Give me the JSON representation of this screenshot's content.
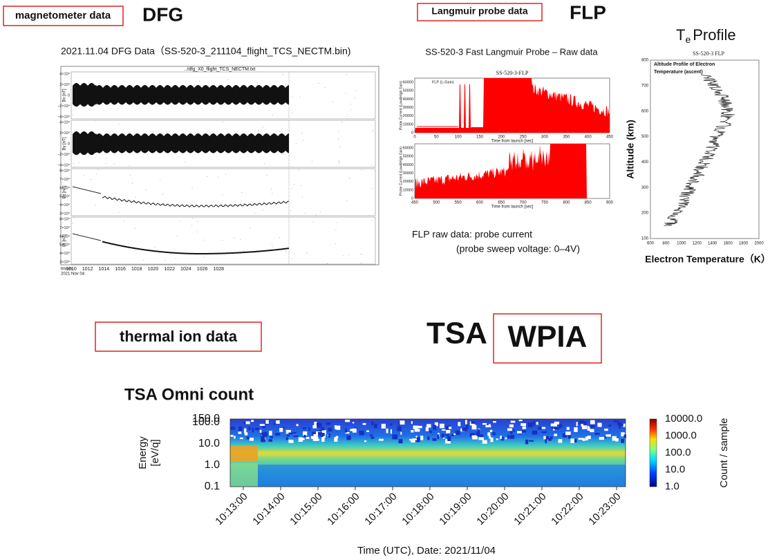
{
  "dfg": {
    "tag": "magnetometer data",
    "name": "DFG",
    "title": "2021.11.04 DFG Data（SS-520-3_211104_flight_TCS_NECTM.bin)",
    "file": "../dfg_X0_flight_TCS_NECTM.txt",
    "panels": [
      {
        "ylabel": "Bx [nT]",
        "yticks": [
          "4×10⁴",
          "2×10⁴",
          "0",
          "−2×10⁴",
          "−4×10⁴"
        ]
      },
      {
        "ylabel": "By [nT]",
        "yticks": [
          "4×10⁴",
          "2×10⁴",
          "0",
          "−2×10⁴",
          "−4×10⁴"
        ]
      },
      {
        "ylabel": "Bz [nT]",
        "yticks": [
          "8×10⁴",
          "7×10⁴",
          "6×10⁴",
          "5×10⁴",
          "4×10⁴",
          "3×10⁴"
        ]
      },
      {
        "ylabel": "Bt [nT]",
        "yticks": [
          "8×10⁴",
          "7×10⁴",
          "6×10⁴",
          "5×10⁴",
          "4×10⁴",
          "3×10⁴"
        ]
      }
    ],
    "xticks": [
      1010,
      1012,
      1014,
      1016,
      1018,
      1020,
      1022,
      1024,
      1026,
      1028
    ],
    "xunit": "hhmm",
    "date": "2021 Nov 04"
  },
  "flp": {
    "tag": "Langmuir probe data",
    "name": "FLP",
    "title": "SS-520-3 Fast Langmuir Probe – Raw data",
    "plot_title": "SS-520-3-FLP",
    "legend": "FLP (L-Gain)",
    "ylabel": "Probe Current (Low&High Gain)",
    "xlabel": "Time from launch [sec]",
    "yticks": [
      0,
      10000,
      20000,
      30000,
      40000,
      50000,
      60000
    ],
    "xticks_top": [
      0,
      50,
      100,
      150,
      200,
      250,
      300,
      350,
      400,
      450
    ],
    "xticks_bottom": [
      450,
      500,
      550,
      600,
      650,
      700,
      750,
      800,
      850,
      900
    ],
    "caption": [
      "FLP raw data: probe current",
      "(probe sweep voltage: 0–4V)"
    ]
  },
  "te": {
    "title": "T",
    "title_sub": "e",
    "title_rest": "Profile",
    "plot_title": "SS-520-3 FLP",
    "annotation": [
      "Altitude Profile of Electron",
      "Temperature (ascent)"
    ],
    "ylabel": "Altitude (km)",
    "xlabel": "Electron Temperature（K）",
    "yticks": [
      100,
      200,
      300,
      400,
      500,
      600,
      700,
      800
    ],
    "xticks": [
      600,
      800,
      1000,
      1200,
      1400,
      1600,
      1800,
      2000
    ]
  },
  "tsa": {
    "tag": "thermal ion data",
    "name": "TSA",
    "name2": "WPIA",
    "title": "TSA Omni count",
    "ylabel": [
      "Energy",
      "[eV/q]"
    ],
    "yticks": [
      {
        "value": 150,
        "label": "150.0"
      },
      {
        "value": 100,
        "label": "100.0"
      },
      {
        "value": 10,
        "label": "10.0"
      },
      {
        "value": 1,
        "label": "1.0"
      },
      {
        "value": 0.1,
        "label": "0.1"
      }
    ],
    "cticks": [
      {
        "value": 10000,
        "label": "10000.0"
      },
      {
        "value": 1000,
        "label": "1000.0"
      },
      {
        "value": 100,
        "label": "100.0"
      },
      {
        "value": 10,
        "label": "10.0"
      },
      {
        "value": 1,
        "label": "1.0"
      }
    ],
    "clabel": "Count / sample",
    "xticks": [
      "10:13:00",
      "10:14:00",
      "10:15:00",
      "10:16:00",
      "10:17:00",
      "10:18:00",
      "10:19:00",
      "10:20:00",
      "10:21:00",
      "10:22:00",
      "10:23:00"
    ],
    "xlabel": "Time (UTC), Date: 2021/11/04"
  }
}
